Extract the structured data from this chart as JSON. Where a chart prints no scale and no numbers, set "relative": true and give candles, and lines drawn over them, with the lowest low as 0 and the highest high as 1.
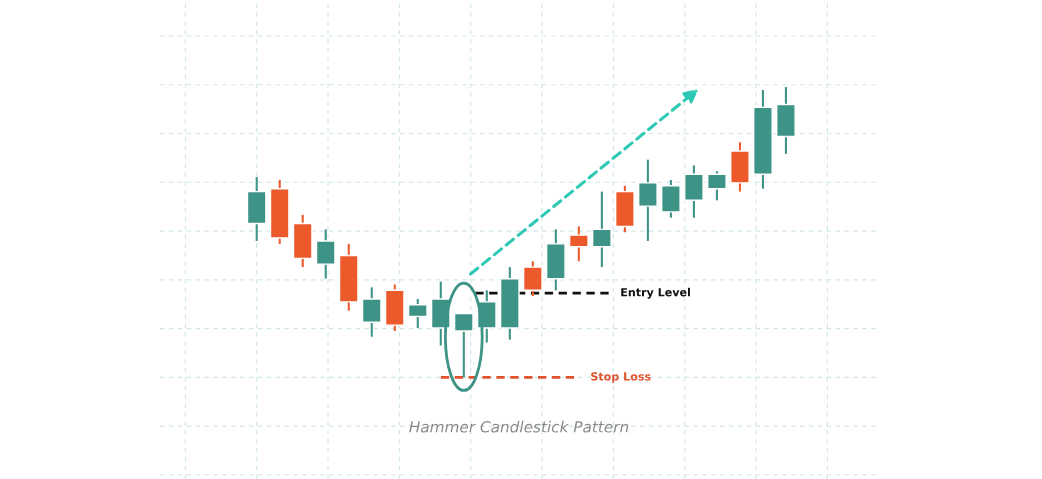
{
  "chart_data": {
    "type": "candlestick",
    "title": "Hammer Candlestick Pattern",
    "relative": true,
    "grid": true,
    "categories": [
      null,
      null,
      null,
      null,
      null,
      null,
      null,
      null,
      null,
      null,
      null,
      null,
      null,
      null,
      null,
      null,
      null,
      null,
      null,
      null,
      null,
      null,
      null,
      null
    ],
    "ohlc": [
      [
        0.53,
        0.69,
        0.47,
        0.64
      ],
      [
        0.65,
        0.68,
        0.46,
        0.48
      ],
      [
        0.53,
        0.56,
        0.38,
        0.41
      ],
      [
        0.39,
        0.51,
        0.34,
        0.47
      ],
      [
        0.42,
        0.46,
        0.23,
        0.26
      ],
      [
        0.19,
        0.31,
        0.14,
        0.27
      ],
      [
        0.3,
        0.32,
        0.16,
        0.18
      ],
      [
        0.21,
        0.27,
        0.17,
        0.25
      ],
      [
        0.17,
        0.33,
        0.11,
        0.27
      ],
      [
        0.16,
        0.22,
        0.0,
        0.22
      ],
      [
        0.17,
        0.3,
        0.12,
        0.26
      ],
      [
        0.17,
        0.38,
        0.13,
        0.34
      ],
      [
        0.38,
        0.4,
        0.28,
        0.3
      ],
      [
        0.34,
        0.51,
        0.3,
        0.46
      ],
      [
        0.49,
        0.52,
        0.4,
        0.45
      ],
      [
        0.45,
        0.64,
        0.38,
        0.51
      ],
      [
        0.64,
        0.66,
        0.5,
        0.52
      ],
      [
        0.59,
        0.75,
        0.47,
        0.67
      ],
      [
        0.57,
        0.68,
        0.55,
        0.66
      ],
      [
        0.61,
        0.73,
        0.55,
        0.7
      ],
      [
        0.65,
        0.71,
        0.61,
        0.7
      ],
      [
        0.78,
        0.81,
        0.64,
        0.67
      ],
      [
        0.7,
        0.99,
        0.65,
        0.93
      ],
      [
        0.83,
        1.0,
        0.77,
        0.94
      ]
    ],
    "colors": [
      "#3d9386",
      "#ec5a2c",
      "#ec5a2c",
      "#3d9386",
      "#ec5a2c",
      "#3d9386",
      "#ec5a2c",
      "#3d9386",
      "#3d9386",
      "#3d9386",
      "#3d9386",
      "#3d9386",
      "#ec5a2c",
      "#3d9386",
      "#ec5a2c",
      "#3d9386",
      "#ec5a2c",
      "#3d9386",
      "#3d9386",
      "#3d9386",
      "#3d9386",
      "#ec5a2c",
      "#3d9386",
      "#3d9386"
    ],
    "ref_lines": [
      {
        "axis": "y",
        "value": 0.29,
        "label": "Entry Level",
        "color": "#111111",
        "line_style": "dashed"
      },
      {
        "axis": "y",
        "value": 0.0,
        "label": "Stop Loss",
        "color": "#e0532e",
        "line_style": "dashed"
      }
    ]
  }
}
